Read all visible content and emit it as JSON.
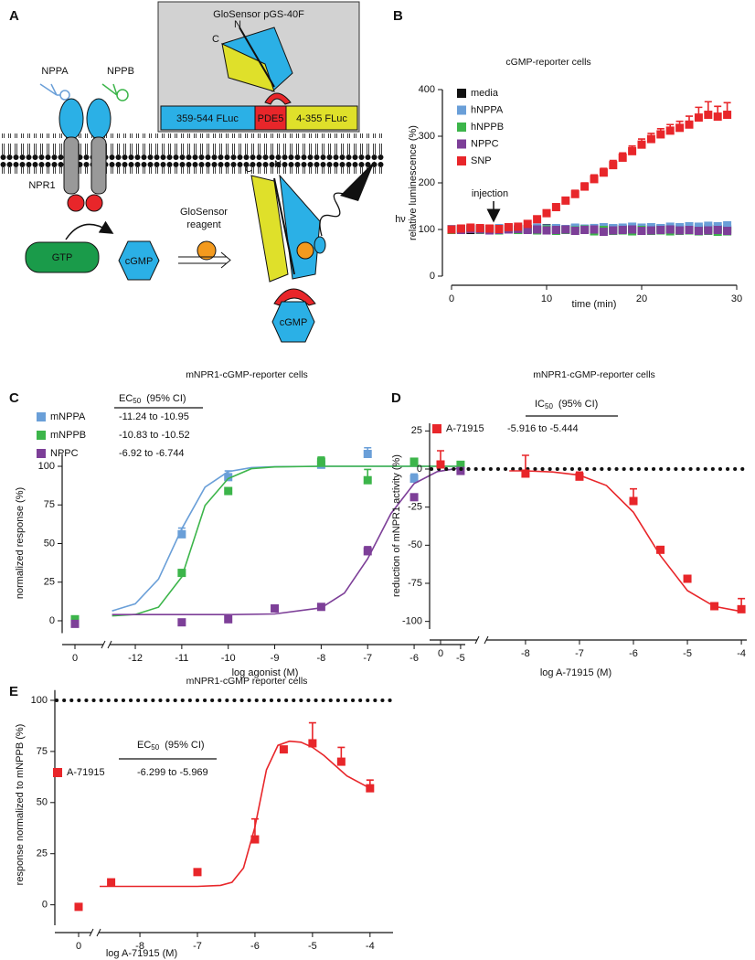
{
  "diagram": {
    "panel_label": "A",
    "sensor_title": "GloSensor pGS-40F",
    "segments": [
      "359-544 FLuc",
      "PDE5",
      "4-355 FLuc"
    ],
    "top_c": "C",
    "top_n": "N",
    "ligands": [
      "NPPA",
      "NPPB"
    ],
    "receptor": "NPR1",
    "substrate": "GTP",
    "product": "cGMP",
    "reagent": [
      "GloSensor",
      "reagent"
    ],
    "bound_c": "C",
    "bound_n": "N",
    "light": "hν",
    "bound_ligand": "cGMP"
  },
  "chart_data": [
    {
      "type": "scatter",
      "panel_label": "B",
      "title": "cGMP-reporter cells",
      "x_label": "time (min)",
      "y_label": "relative luminescence (%)",
      "annotation": "injection",
      "x": [
        0,
        1,
        2,
        3,
        4,
        5,
        6,
        7,
        8,
        9,
        10,
        11,
        12,
        13,
        14,
        15,
        16,
        17,
        18,
        19,
        20,
        21,
        22,
        23,
        24,
        25,
        26,
        27,
        28,
        29
      ],
      "xlim": [
        0,
        30
      ],
      "xticks": [
        0,
        10,
        20,
        30
      ],
      "ylim": [
        0,
        400
      ],
      "yticks": [
        0,
        100,
        200,
        300,
        400
      ],
      "series": [
        {
          "name": "media",
          "color": "#111111",
          "values": [
            100,
            101,
            99,
            100,
            101,
            100,
            102,
            99,
            101,
            100,
            103,
            101,
            100,
            102,
            101,
            103,
            100,
            102,
            101,
            100,
            103,
            101,
            102,
            100,
            101,
            103,
            100,
            102,
            101,
            100
          ]
        },
        {
          "name": "hNPPA",
          "color": "#6a9fd8",
          "values": [
            101,
            100,
            102,
            101,
            100,
            103,
            101,
            102,
            100,
            104,
            102,
            103,
            101,
            104,
            102,
            103,
            105,
            103,
            104,
            106,
            104,
            105,
            103,
            106,
            105,
            107,
            106,
            108,
            107,
            109
          ]
        },
        {
          "name": "hNPPB",
          "color": "#3cb54a",
          "values": [
            99,
            100,
            101,
            99,
            100,
            98,
            100,
            99,
            101,
            98,
            100,
            97,
            99,
            98,
            100,
            96,
            99,
            97,
            98,
            96,
            99,
            97,
            98,
            96,
            97,
            98,
            96,
            97,
            95,
            96
          ]
        },
        {
          "name": "NPPC",
          "color": "#7d3f98",
          "values": [
            100,
            99,
            101,
            100,
            98,
            99,
            100,
            101,
            99,
            100,
            98,
            99,
            100,
            97,
            99,
            100,
            95,
            98,
            99,
            100,
            97,
            98,
            99,
            100,
            98,
            99,
            97,
            98,
            99,
            97
          ]
        },
        {
          "name": "SNP",
          "color": "#e8262a",
          "values": [
            100,
            102,
            104,
            103,
            102,
            101,
            105,
            106,
            112,
            122,
            135,
            148,
            162,
            176,
            192,
            208,
            222,
            238,
            254,
            268,
            282,
            294,
            304,
            312,
            318,
            325,
            340,
            346,
            342,
            346
          ],
          "errors": [
            2,
            2,
            2,
            2,
            2,
            2,
            2,
            2,
            4,
            5,
            6,
            6,
            7,
            8,
            8,
            9,
            9,
            10,
            10,
            11,
            12,
            12,
            12,
            13,
            14,
            18,
            22,
            28,
            22,
            26
          ]
        }
      ]
    },
    {
      "type": "scatter",
      "panel_label": "C",
      "title": "mNPR1-cGMP-reporter cells",
      "x_label": "log agonist (M)",
      "y_label": "normalized response (%)",
      "ci_header": {
        "symbol": "EC",
        "subscript": "50",
        "suffix": "(95% CI)"
      },
      "axis_break": true,
      "xlim": [
        -12.5,
        -4.9
      ],
      "xticks": [
        0,
        -12,
        -11,
        -10,
        -9,
        -8,
        -7,
        -6,
        -5
      ],
      "ylim": [
        -8,
        108
      ],
      "yticks": [
        0,
        25,
        50,
        75,
        100
      ],
      "series": [
        {
          "name": "mNPPA",
          "ci": "-11.24 to -10.95",
          "color": "#6a9fd8",
          "x": [
            0,
            -11,
            -10,
            -8,
            -7,
            -6
          ],
          "values": [
            0,
            56,
            93,
            101,
            108,
            92
          ],
          "errors": [
            3,
            4,
            4,
            3,
            4,
            3
          ],
          "fit": {
            "x": [
              -12.5,
              -12,
              -11.5,
              -11,
              -10.5,
              -10,
              -9.5,
              -9,
              -8,
              -7,
              -6,
              -5
            ],
            "values": [
              6.4,
              11,
              27,
              59.6,
              86.5,
              96.6,
              99.2,
              99.8,
              100,
              100,
              100,
              100
            ]
          }
        },
        {
          "name": "mNPPB",
          "ci": "-10.83 to -10.52",
          "color": "#3cb54a",
          "x": [
            0,
            -11,
            -10,
            -8,
            -7,
            -6,
            -5
          ],
          "values": [
            1,
            31,
            84,
            103,
            91,
            103,
            101
          ],
          "errors": [
            2,
            2,
            2,
            3,
            7,
            2,
            2
          ],
          "fit": {
            "x": [
              -12.5,
              -12,
              -11.5,
              -11,
              -10.5,
              -10,
              -9.5,
              -9,
              -8,
              -7,
              -6,
              -5
            ],
            "values": [
              3.2,
              4.1,
              8.8,
              28.4,
              74.6,
              92.1,
              98.5,
              99.6,
              100,
              100,
              100,
              100
            ]
          }
        },
        {
          "name": "NPPC",
          "ci": "-6.92 to -6.744",
          "color": "#7d3f98",
          "x": [
            0,
            -11,
            -10,
            -9,
            -8,
            -7,
            -6,
            -5
          ],
          "values": [
            -2,
            -1,
            1,
            8,
            9,
            45,
            80,
            97
          ],
          "errors": [
            2,
            2,
            2,
            2,
            2,
            3,
            2,
            2
          ],
          "fit": {
            "x": [
              -12.5,
              -11,
              -10,
              -9,
              -8,
              -7.5,
              -7,
              -6.5,
              -6,
              -5.5,
              -5
            ],
            "values": [
              4,
              4,
              4,
              4.4,
              8.4,
              17.9,
              40.1,
              69.4,
              88.8,
              96.6,
              99
            ]
          }
        }
      ]
    },
    {
      "type": "scatter",
      "panel_label": "D",
      "title": "mNPR1-cGMP-reporter cells",
      "x_label": "log A-71915 (M)",
      "y_label": "reduction of mNPR1 activity (%)",
      "ci_header": {
        "symbol": "IC",
        "subscript": "50",
        "suffix": "(95% CI)"
      },
      "axis_break": true,
      "reference_line": 0,
      "xlim": [
        -8.5,
        -3.9
      ],
      "xticks": [
        0,
        -8,
        -7,
        -6,
        -5,
        -4
      ],
      "ylim": [
        -105,
        30
      ],
      "yticks": [
        25,
        0,
        -25,
        -50,
        -75,
        -100
      ],
      "series": [
        {
          "name": "A-71915",
          "ci": "-5.916 to -5.444",
          "color": "#e8262a",
          "x": [
            0,
            -8,
            -7,
            -6,
            -5.5,
            -5,
            -4.5,
            -4
          ],
          "values": [
            3,
            -3,
            -5,
            -21,
            -53,
            -72,
            -90,
            -92
          ],
          "errors": [
            9,
            12,
            3,
            8,
            2,
            2,
            2,
            7
          ],
          "fit": {
            "x": [
              -8.3,
              -8,
              -7.5,
              -7,
              -6.5,
              -6,
              -5.5,
              -5,
              -4.5,
              -4
            ],
            "values": [
              -1.2,
              -1.2,
              -1.9,
              -4,
              -10.8,
              -28.4,
              -56.8,
              -79.8,
              -90.2,
              -93.5
            ]
          }
        }
      ]
    },
    {
      "type": "scatter",
      "panel_label": "E",
      "title": "mNPR1-cGMP reporter cells",
      "x_label": "log A-71915 (M)",
      "y_label": "response normalized to mNPPB (%)",
      "ci_header": {
        "symbol": "EC",
        "subscript": "50",
        "suffix": "(95% CI)"
      },
      "axis_break": true,
      "reference_line": 100,
      "xlim": [
        -8.7,
        -3.6
      ],
      "xticks": [
        0,
        -8,
        -7,
        -6,
        -5,
        -4
      ],
      "ylim": [
        -10,
        105
      ],
      "yticks": [
        0,
        25,
        50,
        75,
        100
      ],
      "series": [
        {
          "name": "A-71915",
          "ci": "-6.299 to -5.969",
          "color": "#e8262a",
          "x": [
            0,
            -8.5,
            -7,
            -6,
            -5.5,
            -5,
            -4.5,
            -4
          ],
          "values": [
            -1,
            11,
            16,
            32,
            76,
            79,
            70,
            57
          ],
          "errors": [
            null,
            null,
            null,
            10,
            null,
            10,
            7,
            4
          ],
          "fit": {
            "x": [
              -8.7,
              -7,
              -6.6,
              -6.4,
              -6.2,
              -6,
              -5.8,
              -5.6,
              -5.4,
              -5.2,
              -5,
              -4.8,
              -4.6,
              -4.4,
              -4.2,
              -4
            ],
            "values": [
              9,
              9,
              9.5,
              11,
              18,
              38,
              66,
              78,
              80,
              79.5,
              77,
              73,
              68,
              63,
              60,
              57
            ]
          }
        }
      ]
    }
  ]
}
